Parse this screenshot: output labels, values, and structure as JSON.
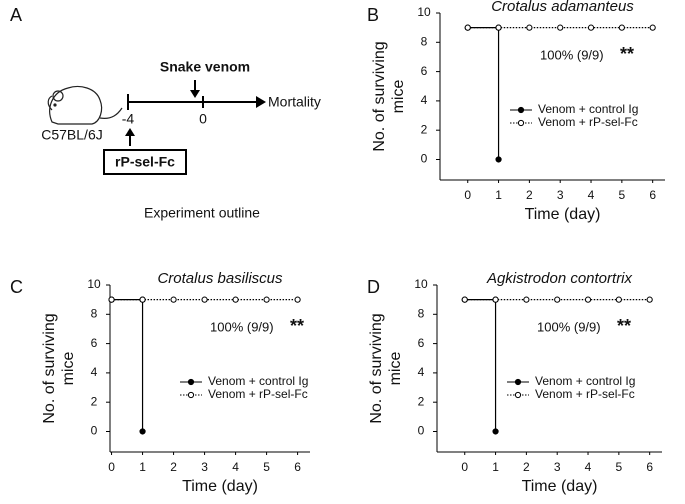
{
  "outline": {
    "panel": "A",
    "strain": "C57BL/6J",
    "injection": "Snake venom",
    "treatment": "rP-sel-Fc",
    "start": "-4",
    "venom_day": "0",
    "end": "Mortality",
    "caption": "Experiment outline"
  },
  "chart_data": [
    {
      "type": "line",
      "panel": "B",
      "title": "Crotalus adamanteus",
      "xlabel": "Time  (day)",
      "ylabel": [
        "No. of surviving",
        "mice"
      ],
      "xlim": [
        -0.9,
        6.4
      ],
      "xticks": [
        0,
        1,
        2,
        3,
        4,
        5,
        6
      ],
      "ylim": [
        -1.4,
        10
      ],
      "yticks": [
        0,
        2,
        4,
        6,
        8,
        10
      ],
      "annotation": "100% (9/9)",
      "significance": "**",
      "series": [
        {
          "name": "Venom + control Ig",
          "color": "#000000",
          "marker": "filled",
          "x": [
            0,
            1,
            1
          ],
          "values": [
            9,
            9,
            0
          ]
        },
        {
          "name": "Venom + rP-sel-Fc",
          "color": "#000000",
          "marker": "open",
          "x": [
            0,
            1,
            2,
            3,
            4,
            5,
            6
          ],
          "values": [
            9,
            9,
            9,
            9,
            9,
            9,
            9
          ]
        }
      ]
    },
    {
      "type": "line",
      "panel": "C",
      "title": "Crotalus basiliscus",
      "xlabel": "Time  (day)",
      "ylabel": [
        "No. of surviving",
        "mice"
      ],
      "xlim": [
        -0.05,
        6.4
      ],
      "xticks": [
        0,
        1,
        2,
        3,
        4,
        5,
        6
      ],
      "ylim": [
        -1.4,
        10
      ],
      "yticks": [
        0,
        2,
        4,
        6,
        8,
        10
      ],
      "annotation": "100% (9/9)",
      "significance": "**",
      "series": [
        {
          "name": "Venom + control Ig",
          "color": "#000000",
          "marker": "filled",
          "x": [
            0,
            1,
            1
          ],
          "values": [
            9,
            9,
            0
          ]
        },
        {
          "name": "Venom + rP-sel-Fc",
          "color": "#000000",
          "marker": "open",
          "x": [
            0,
            1,
            2,
            3,
            4,
            5,
            6
          ],
          "values": [
            9,
            9,
            9,
            9,
            9,
            9,
            9
          ]
        }
      ]
    },
    {
      "type": "line",
      "panel": "D",
      "title": "Agkistrodon contortrix",
      "xlabel": "Time  (day)",
      "ylabel": [
        "No. of surviving",
        "mice"
      ],
      "xlim": [
        -0.9,
        6.4
      ],
      "xticks": [
        0,
        1,
        2,
        3,
        4,
        5,
        6
      ],
      "ylim": [
        -1.4,
        10
      ],
      "yticks": [
        0,
        2,
        4,
        6,
        8,
        10
      ],
      "annotation": "100% (9/9)",
      "significance": "**",
      "series": [
        {
          "name": "Venom + control Ig",
          "color": "#000000",
          "marker": "filled",
          "x": [
            0,
            1,
            1
          ],
          "values": [
            9,
            9,
            0
          ]
        },
        {
          "name": "Venom + rP-sel-Fc",
          "color": "#000000",
          "marker": "open",
          "x": [
            0,
            1,
            2,
            3,
            4,
            5,
            6
          ],
          "values": [
            9,
            9,
            9,
            9,
            9,
            9,
            9
          ]
        }
      ]
    }
  ]
}
